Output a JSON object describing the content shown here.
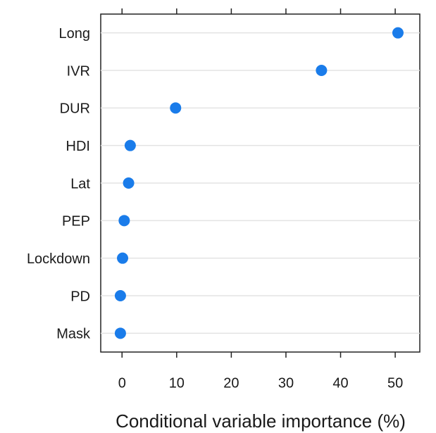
{
  "chart_data": {
    "type": "dot",
    "x_label": "Conditional variable importance (%)",
    "categories": [
      "Long",
      "IVR",
      "DUR",
      "HDI",
      "Lat",
      "PEP",
      "Lockdown",
      "PD",
      "Mask"
    ],
    "values": [
      50.5,
      36.5,
      9.8,
      1.5,
      1.2,
      0.4,
      0.1,
      -0.3,
      -0.3
    ],
    "color": "#1a7cea",
    "xlim": [
      -3.9,
      54.5
    ],
    "xticks": [
      0,
      10,
      20,
      30,
      40,
      50
    ],
    "grid": true
  }
}
